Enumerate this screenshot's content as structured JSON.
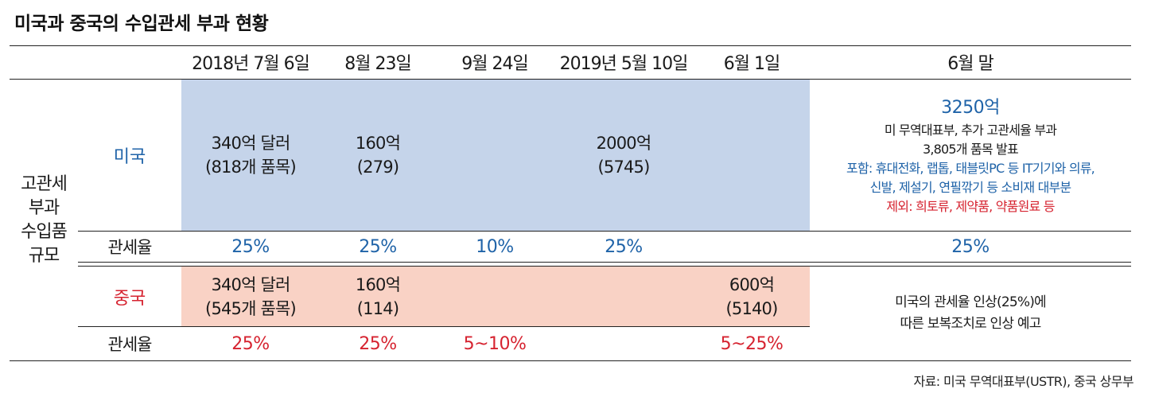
{
  "title": "미국과 중국의 수입관세 부과 현황",
  "columns": [
    "2018년 7월 6일",
    "8월 23일",
    "9월 24일",
    "2019년 5월 10일",
    "6월 1일",
    "6월 말"
  ],
  "row_group_label": [
    "고관세",
    "부과",
    "수입품",
    "규모"
  ],
  "us": {
    "label": "미국",
    "rate_label": "관세율",
    "amounts": [
      [
        "340억 달러",
        "(818개 품목)"
      ],
      [
        "160억",
        "(279)"
      ],
      [
        "2000억",
        "(5745)"
      ]
    ],
    "rates": [
      "25%",
      "25%",
      "10%",
      "25%",
      "25%"
    ],
    "june_end": {
      "amount": "3250억",
      "line1": "미 무역대표부,  추가 고관세율 부과",
      "line2": "3,805개 품목 발표",
      "include1": "포함: 휴대전화, 랩톱, 태블릿PC 등 IT기기와 의류,",
      "include2": "신발, 제설기, 연필깎기 등 소비재 대부분",
      "exclude": "제외: 희토류, 제약품, 약품원료 등"
    }
  },
  "china": {
    "label": "중국",
    "rate_label": "관세율",
    "amounts": [
      [
        "340억 달러",
        "(545개 품목)"
      ],
      [
        "160억",
        "(114)"
      ],
      [
        "600억",
        "(5140)"
      ]
    ],
    "rates": [
      "25%",
      "25%",
      "5~10%",
      "5~25%"
    ],
    "june_end_note1": "미국의 관세율 인상(25%)에",
    "june_end_note2": "따른 보복조치로 인상 예고"
  },
  "source": "자료: 미국 무역대표부(USTR), 중국 상무부",
  "colors": {
    "us_fill": "#c5d4ea",
    "china_fill": "#f9d2c5",
    "us_text": "#1f63a8",
    "china_text": "#d62330"
  }
}
